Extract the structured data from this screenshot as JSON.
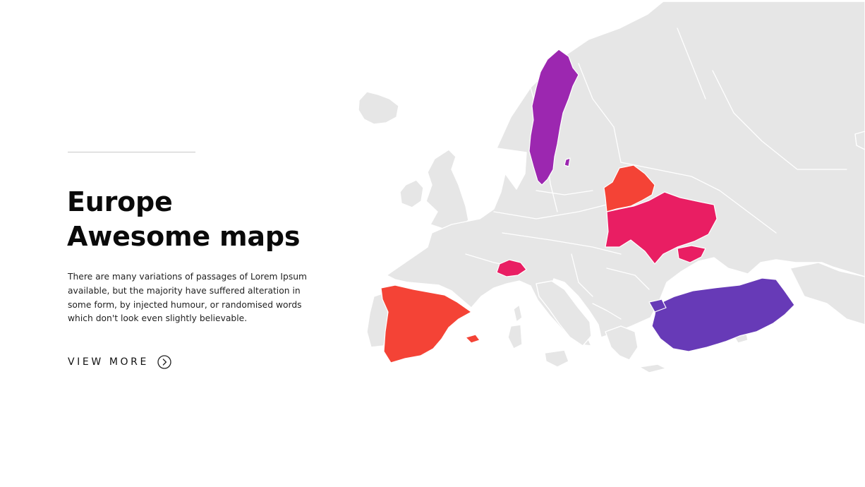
{
  "header": {
    "title_line1": "Europe",
    "title_line2": "Awesome maps"
  },
  "description": "There are many variations of passages of Lorem Ipsum available, but the majority have suffered alteration in some form, by injected humour, or randomised words which don't look even slightly believable.",
  "cta": {
    "label": "VIEW MORE",
    "icon": "chevron-right-circle-icon"
  },
  "map": {
    "region": "Europe",
    "base_color": "#e6e6e6",
    "highlighted_countries": [
      {
        "country": "Sweden",
        "color": "#9c27b0"
      },
      {
        "country": "Belarus",
        "color": "#f44336"
      },
      {
        "country": "Ukraine",
        "color": "#e91e63"
      },
      {
        "country": "Switzerland",
        "color": "#e91e63"
      },
      {
        "country": "Spain",
        "color": "#f44336"
      },
      {
        "country": "Turkey",
        "color": "#673ab7"
      }
    ]
  }
}
